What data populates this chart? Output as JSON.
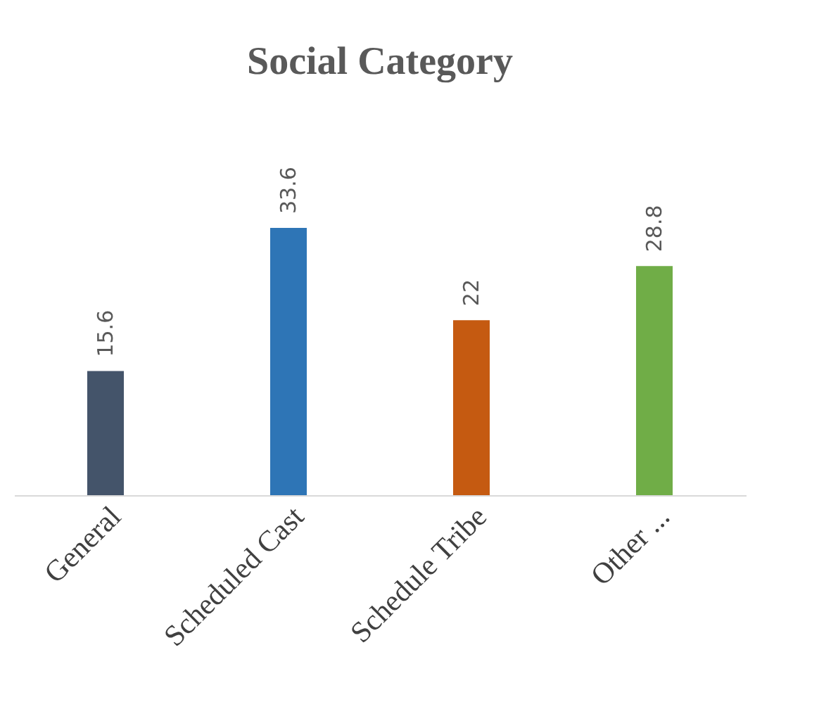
{
  "chart_data": {
    "type": "bar",
    "title": "Social Category",
    "categories": [
      "General",
      "Scheduled Cast",
      "Schedule Tribe",
      "Other ..."
    ],
    "values": [
      15.6,
      33.6,
      22,
      28.8
    ],
    "colors": [
      "#44546a",
      "#2e75b6",
      "#c55a11",
      "#70ad47"
    ],
    "data_labels": true
  }
}
